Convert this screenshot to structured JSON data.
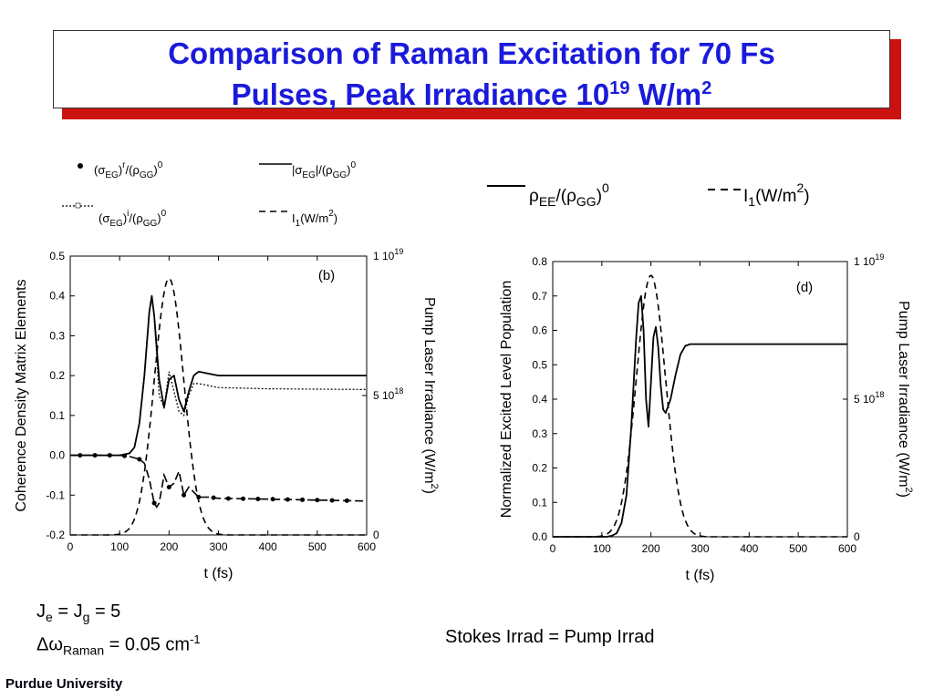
{
  "header": {
    "title_line1": "Comparison of Raman Excitation for 70 Fs",
    "title_line2_prefix": "Pulses, Peak Irradiance 10",
    "title_line2_exp": "19",
    "title_line2_suffix": " W/m",
    "title_line2_sup2": "2"
  },
  "legend_left": {
    "item1": {
      "base": "(σ",
      "sub1": "EG",
      "mid": ")",
      "sup1": "r",
      "mid2": "/(ρ",
      "sub2": "GG",
      "end": ")",
      "sup2": "0"
    },
    "item2": {
      "base": "(σ",
      "sub1": "EG",
      "mid": ")",
      "sup1": "i",
      "mid2": "/(ρ",
      "sub2": "GG",
      "end": ")",
      "sup2": "0"
    },
    "item3": {
      "base": "|σ",
      "sub1": "EG",
      "mid": "|/(ρ",
      "sub2": "GG",
      "end": ")",
      "sup2": "0"
    },
    "item4": {
      "base": "I",
      "sub1": "1",
      "mid": "(W/m",
      "sup1": "2",
      "end": ")"
    }
  },
  "legend_right": {
    "item1": {
      "base": "ρ",
      "sub1": "EE",
      "mid": "/(ρ",
      "sub2": "GG",
      "end": ")",
      "sup2": "0"
    },
    "item2": {
      "base": "I",
      "sub1": "1",
      "mid": "(W/m",
      "sup1": "2",
      "end": ")"
    }
  },
  "notes": {
    "je_base": "J",
    "je_sub": "e",
    "je_mid": " = J",
    "jg_sub": "g",
    "je_end": " = 5",
    "dw_base": "Δω",
    "dw_sub": "Raman",
    "dw_mid": " = 0.05 cm",
    "dw_sup": "-1",
    "stokes": "Stokes Irrad = Pump Irrad",
    "footer": "Purdue University"
  },
  "chart_data": [
    {
      "type": "line",
      "panel_label": "(b)",
      "xlabel": "t (fs)",
      "ylabel": "Coherence Density Matrix Elements",
      "y2label_main": "Pump Laser Irradiance (W/m",
      "y2label_sup": "2",
      "y2label_end": ")",
      "xlim": [
        0,
        600
      ],
      "ylim": [
        -0.2,
        0.5
      ],
      "x_ticks": [
        "0",
        "100",
        "200",
        "300",
        "400",
        "500",
        "600"
      ],
      "y_ticks": [
        "-0.2",
        "-0.1",
        "0.0",
        "0.1",
        "0.2",
        "0.3",
        "0.4",
        "0.5"
      ],
      "y2_ticks": [
        {
          "pos": 0,
          "base": "0",
          "exp": ""
        },
        {
          "pos": 0.5,
          "base": "5 10",
          "exp": "18"
        },
        {
          "pos": 1,
          "base": "1 10",
          "exp": "19"
        }
      ],
      "series": [
        {
          "style": "solid",
          "x": [
            0,
            100,
            120,
            130,
            140,
            150,
            160,
            165,
            170,
            180,
            190,
            200,
            210,
            220,
            230,
            240,
            250,
            260,
            280,
            300,
            400,
            600
          ],
          "y": [
            0.0,
            0.0,
            0.005,
            0.02,
            0.08,
            0.2,
            0.36,
            0.4,
            0.35,
            0.19,
            0.12,
            0.19,
            0.2,
            0.14,
            0.11,
            0.16,
            0.2,
            0.21,
            0.205,
            0.2,
            0.2,
            0.2
          ]
        },
        {
          "style": "dotted",
          "x": [
            0,
            100,
            120,
            130,
            140,
            150,
            160,
            165,
            170,
            180,
            190,
            200,
            210,
            220,
            230,
            240,
            250,
            260,
            280,
            300,
            400,
            600
          ],
          "y": [
            0.0,
            0.0,
            0.005,
            0.02,
            0.08,
            0.2,
            0.36,
            0.4,
            0.35,
            0.15,
            0.12,
            0.21,
            0.16,
            0.11,
            0.1,
            0.15,
            0.18,
            0.18,
            0.175,
            0.17,
            0.167,
            0.165
          ]
        },
        {
          "style": "markers",
          "x": [
            0,
            100,
            120,
            140,
            150,
            160,
            170,
            175,
            180,
            190,
            200,
            210,
            220,
            230,
            240,
            260,
            280,
            300,
            400,
            600
          ],
          "y": [
            0.0,
            0.0,
            -0.003,
            -0.01,
            -0.02,
            -0.06,
            -0.12,
            -0.13,
            -0.12,
            -0.05,
            -0.08,
            -0.07,
            -0.04,
            -0.1,
            -0.08,
            -0.105,
            -0.105,
            -0.108,
            -0.11,
            -0.115
          ],
          "marker_x": [
            20,
            50,
            80,
            110,
            140,
            170,
            200,
            230,
            260,
            290,
            320,
            350,
            380,
            410,
            440,
            470,
            500,
            530,
            560
          ]
        },
        {
          "style": "dashed",
          "axis": "y2",
          "gaussian": {
            "center": 200,
            "fwhm": 70,
            "peak": 0.92
          }
        }
      ]
    },
    {
      "type": "line",
      "panel_label": "(d)",
      "xlabel": "t (fs)",
      "ylabel": "Normalized Excited Level Population",
      "y2label_main": "Pump Laser Irradiance (W/m",
      "y2label_sup": "2",
      "y2label_end": ")",
      "xlim": [
        0,
        600
      ],
      "ylim": [
        0,
        0.8
      ],
      "x_ticks": [
        "0",
        "100",
        "200",
        "300",
        "400",
        "500",
        "600"
      ],
      "y_ticks": [
        "0.0",
        "0.1",
        "0.2",
        "0.3",
        "0.4",
        "0.5",
        "0.6",
        "0.7",
        "0.8"
      ],
      "y2_ticks": [
        {
          "pos": 0,
          "base": "0",
          "exp": ""
        },
        {
          "pos": 0.5,
          "base": "5 10",
          "exp": "18"
        },
        {
          "pos": 1,
          "base": "1 10",
          "exp": "19"
        }
      ],
      "series": [
        {
          "style": "solid",
          "x": [
            0,
            110,
            120,
            130,
            140,
            150,
            160,
            170,
            175,
            180,
            185,
            190,
            195,
            200,
            205,
            210,
            215,
            220,
            225,
            230,
            240,
            250,
            260,
            270,
            280,
            300,
            600
          ],
          "y": [
            0.0,
            0.0,
            0.003,
            0.01,
            0.04,
            0.12,
            0.32,
            0.58,
            0.68,
            0.7,
            0.6,
            0.4,
            0.32,
            0.45,
            0.58,
            0.61,
            0.55,
            0.44,
            0.37,
            0.36,
            0.4,
            0.47,
            0.53,
            0.555,
            0.56,
            0.56,
            0.56
          ]
        },
        {
          "style": "dashed",
          "axis": "y2",
          "gaussian": {
            "center": 200,
            "fwhm": 70,
            "peak": 0.95
          }
        }
      ]
    }
  ]
}
